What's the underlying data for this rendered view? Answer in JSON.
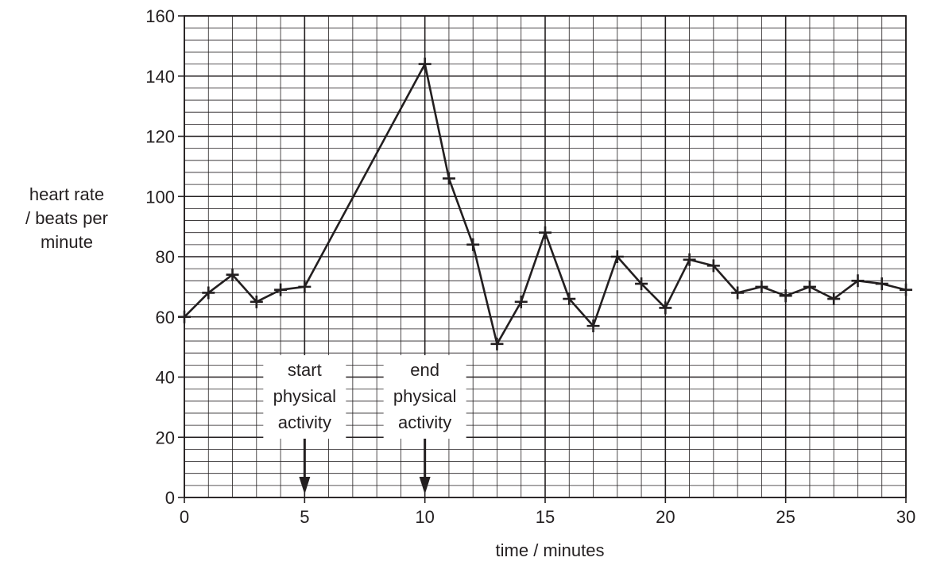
{
  "chart_data": {
    "type": "line",
    "xlabel": "time / minutes",
    "ylabel_lines": [
      "heart rate",
      "/ beats per",
      "minute"
    ],
    "xlim": [
      0,
      30
    ],
    "ylim": [
      0,
      160
    ],
    "x_ticks": [
      0,
      5,
      10,
      15,
      20,
      25,
      30
    ],
    "y_ticks": [
      0,
      20,
      40,
      60,
      80,
      100,
      120,
      140,
      160
    ],
    "grid": true,
    "series": [
      {
        "marker": "plus",
        "color": "#231f20",
        "x": [
          0,
          1,
          2,
          3,
          4,
          5,
          10,
          11,
          12,
          13,
          14,
          15,
          16,
          17,
          18,
          19,
          20,
          21,
          22,
          23,
          24,
          25,
          26,
          27,
          28,
          29,
          30
        ],
        "y": [
          60,
          68,
          74,
          65,
          69,
          70,
          144,
          106,
          84,
          51,
          65,
          88,
          66,
          57,
          80,
          71,
          63,
          79,
          77,
          68,
          70,
          67,
          70,
          66,
          72,
          71,
          69
        ]
      }
    ],
    "annotations": [
      {
        "x": 5,
        "lines": [
          "start",
          "physical",
          "activity"
        ]
      },
      {
        "x": 10,
        "lines": [
          "end",
          "physical",
          "activity"
        ]
      }
    ]
  }
}
